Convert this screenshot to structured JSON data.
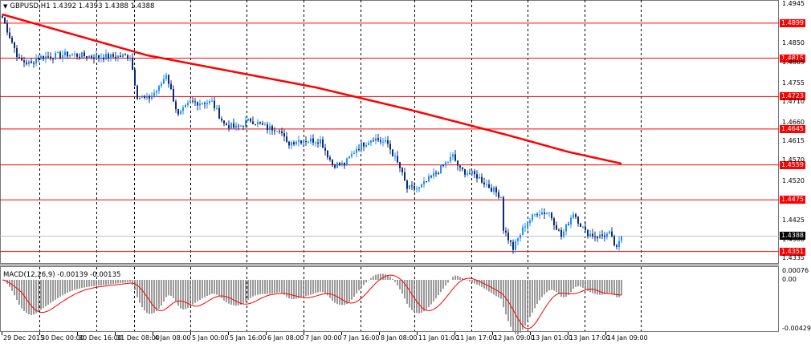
{
  "header": {
    "symbol": "GBPUSD,H1",
    "quote": "1.4392 1.4393 1.4388 1.4388"
  },
  "macd": {
    "label": "MACD(12,26,9) -0.00139 -0.00135",
    "scale": [
      "0.00076",
      "0.00",
      "-0.00429"
    ]
  },
  "price_axis": [
    "1.4945",
    "1.4850",
    "1.4805",
    "1.4755",
    "1.4710",
    "1.4660",
    "1.4615",
    "1.4570",
    "1.4520",
    "1.4425",
    "1.4380",
    "1.4335"
  ],
  "levels": [
    "1.4899",
    "1.4815",
    "1.4723",
    "1.4645",
    "1.4559",
    "1.4475",
    "1.4351"
  ],
  "current_price": "1.4388",
  "time_axis": [
    "29 Dec 2015",
    "30 Dec 00:00",
    "30 Dec 16:00",
    "31 Dec 08:00",
    "4 Jan 08:00",
    "5 Jan 00:00",
    "5 Jan 16:00",
    "6 Jan 08:00",
    "7 Jan 00:00",
    "7 Jan 16:00",
    "8 Jan 08:00",
    "11 Jan 01:00",
    "11 Jan 17:00",
    "12 Jan 09:00",
    "13 Jan 01:00",
    "13 Jan 17:00",
    "14 Jan 09:00"
  ],
  "colors": {
    "level": "#ff0000",
    "ma": "#ff0000",
    "bull": "#1e90ff",
    "bear": "#0a2a7a",
    "hist": "#808080"
  },
  "chart_data": {
    "type": "candlestick",
    "symbol": "GBPUSD",
    "timeframe": "H1",
    "ylim": [
      1.4335,
      1.4945
    ],
    "close_keypoints": [
      [
        0,
        1.4912
      ],
      [
        7,
        1.481
      ],
      [
        12,
        1.4801
      ],
      [
        14,
        1.4816
      ],
      [
        27,
        1.4824
      ],
      [
        40,
        1.4818
      ],
      [
        53,
        1.482
      ],
      [
        56,
        1.4724
      ],
      [
        60,
        1.4715
      ],
      [
        65,
        1.4743
      ],
      [
        68,
        1.4778
      ],
      [
        73,
        1.4676
      ],
      [
        78,
        1.4709
      ],
      [
        87,
        1.4709
      ],
      [
        92,
        1.4657
      ],
      [
        97,
        1.4647
      ],
      [
        103,
        1.4667
      ],
      [
        110,
        1.4647
      ],
      [
        115,
        1.4647
      ],
      [
        118,
        1.4609
      ],
      [
        122,
        1.4618
      ],
      [
        132,
        1.4618
      ],
      [
        137,
        1.456
      ],
      [
        142,
        1.456
      ],
      [
        147,
        1.4599
      ],
      [
        154,
        1.4624
      ],
      [
        160,
        1.4609
      ],
      [
        165,
        1.4551
      ],
      [
        168,
        1.4502
      ],
      [
        173,
        1.4502
      ],
      [
        182,
        1.4551
      ],
      [
        187,
        1.458
      ],
      [
        190,
        1.4547
      ],
      [
        197,
        1.4532
      ],
      [
        203,
        1.4502
      ],
      [
        207,
        1.4483
      ],
      [
        208,
        1.4406
      ],
      [
        212,
        1.4358
      ],
      [
        217,
        1.4416
      ],
      [
        222,
        1.4445
      ],
      [
        227,
        1.4445
      ],
      [
        232,
        1.4387
      ],
      [
        237,
        1.4445
      ],
      [
        242,
        1.4397
      ],
      [
        247,
        1.4387
      ],
      [
        252,
        1.4393
      ],
      [
        255,
        1.4355
      ],
      [
        257,
        1.4388
      ]
    ],
    "ma_keypoints": [
      [
        0,
        1.492
      ],
      [
        60,
        1.4822
      ],
      [
        130,
        1.4745
      ],
      [
        170,
        1.469
      ],
      [
        210,
        1.463
      ],
      [
        235,
        1.459
      ],
      [
        257,
        1.4562
      ]
    ]
  }
}
